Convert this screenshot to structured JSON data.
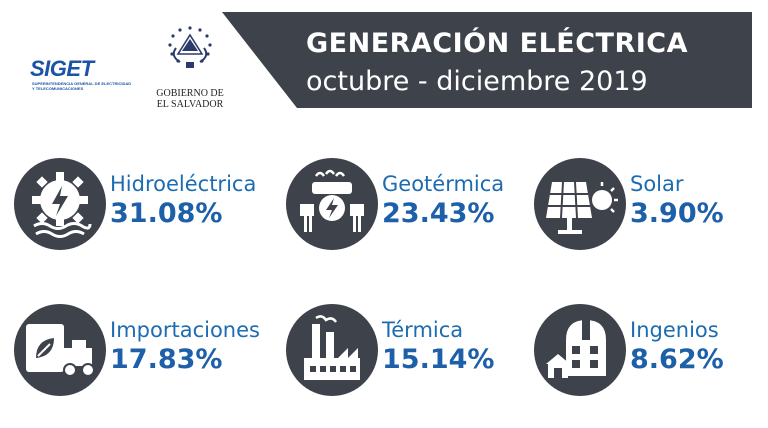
{
  "header": {
    "title": "GENERACIÓN ELÉCTRICA",
    "subtitle": "octubre - diciembre 2019"
  },
  "logos": {
    "siget": {
      "name": "SIGET",
      "subtitle": "Superintendencia General de Electricidad y Telecomunicaciones"
    },
    "gobierno": {
      "line1": "GOBIERNO DE",
      "line2": "EL SALVADOR"
    }
  },
  "sources": [
    {
      "label": "Hidroeléctrica",
      "percent": "31.08%",
      "value": 31.08,
      "icon": "hydro-gear-icon"
    },
    {
      "label": "Geotérmica",
      "percent": "23.43%",
      "value": 23.43,
      "icon": "geothermal-plug-icon"
    },
    {
      "label": "Solar",
      "percent": "3.90%",
      "value": 3.9,
      "icon": "solar-panel-icon"
    },
    {
      "label": "Importaciones",
      "percent": "17.83%",
      "value": 17.83,
      "icon": "import-truck-icon"
    },
    {
      "label": "Térmica",
      "percent": "15.14%",
      "value": 15.14,
      "icon": "thermal-factory-icon"
    },
    {
      "label": "Ingenios",
      "percent": "8.62%",
      "value": 8.62,
      "icon": "sugar-mill-icon"
    }
  ],
  "colors": {
    "banner": "#3d424b",
    "label_blue": "#1d6cb1",
    "percent_blue": "#1d5fa8",
    "icon_circle": "#3d424b"
  }
}
